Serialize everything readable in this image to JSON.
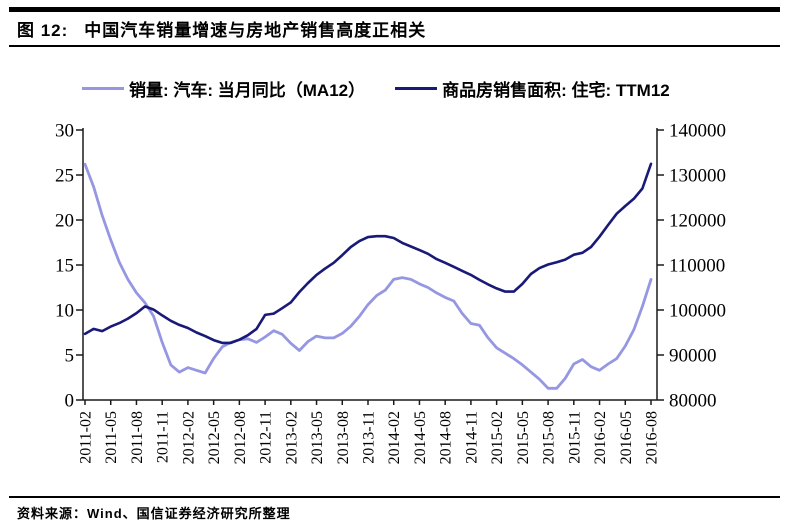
{
  "figure": {
    "label": "图 12:",
    "title": "中国汽车销量增速与房地产销售高度正相关",
    "source": "资料来源：Wind、国信证券经济研究所整理"
  },
  "colors": {
    "auto_series": "#9697e2",
    "housing_series": "#191978",
    "axis": "#1a1a1a",
    "text": "#000000"
  },
  "legend": [
    {
      "label": "销量: 汽车: 当月同比（MA12）",
      "color": "#9697e2"
    },
    {
      "label": "商品房销售面积: 住宅: TTM12",
      "color": "#191978"
    }
  ],
  "chart_data": {
    "type": "line",
    "title": "中国汽车销量增速与房地产销售高度正相关",
    "legend_position": "top",
    "grid": false,
    "x": [
      "2011-02",
      "2011-03",
      "2011-04",
      "2011-05",
      "2011-06",
      "2011-07",
      "2011-08",
      "2011-09",
      "2011-10",
      "2011-11",
      "2011-12",
      "2012-01",
      "2012-02",
      "2012-03",
      "2012-04",
      "2012-05",
      "2012-06",
      "2012-07",
      "2012-08",
      "2012-09",
      "2012-10",
      "2012-11",
      "2012-12",
      "2013-01",
      "2013-02",
      "2013-03",
      "2013-04",
      "2013-05",
      "2013-06",
      "2013-07",
      "2013-08",
      "2013-09",
      "2013-10",
      "2013-11",
      "2013-12",
      "2014-01",
      "2014-02",
      "2014-03",
      "2014-04",
      "2014-05",
      "2014-06",
      "2014-07",
      "2014-08",
      "2014-09",
      "2014-10",
      "2014-11",
      "2014-12",
      "2015-01",
      "2015-02",
      "2015-03",
      "2015-04",
      "2015-05",
      "2015-06",
      "2015-07",
      "2015-08",
      "2015-09",
      "2015-10",
      "2015-11",
      "2015-12",
      "2016-01",
      "2016-02",
      "2016-03",
      "2016-04",
      "2016-05",
      "2016-06",
      "2016-07",
      "2016-08"
    ],
    "x_tick_labels": [
      "2011-02",
      "2011-05",
      "2011-08",
      "2011-11",
      "2012-02",
      "2012-05",
      "2012-08",
      "2012-11",
      "2013-02",
      "2013-05",
      "2013-08",
      "2013-11",
      "2014-02",
      "2014-05",
      "2014-08",
      "2014-11",
      "2015-02",
      "2015-05",
      "2015-08",
      "2015-11",
      "2016-02",
      "2016-05",
      "2016-08"
    ],
    "x_tick_every": 3,
    "left_axis": {
      "min": 0,
      "max": 30,
      "step": 5,
      "ticks": [
        0,
        5,
        10,
        15,
        20,
        25,
        30
      ]
    },
    "right_axis": {
      "min": 80000,
      "max": 140000,
      "step": 10000,
      "ticks": [
        80000,
        90000,
        100000,
        110000,
        120000,
        130000,
        140000
      ]
    },
    "series": [
      {
        "name": "销量: 汽车: 当月同比（MA12）",
        "axis": "left",
        "color": "#9697e2",
        "values": [
          26.2,
          23.7,
          20.5,
          17.8,
          15.3,
          13.4,
          11.9,
          10.8,
          9.3,
          6.4,
          3.9,
          3.1,
          3.6,
          3.3,
          3.0,
          4.6,
          5.9,
          6.4,
          6.7,
          6.8,
          6.4,
          7.0,
          7.7,
          7.3,
          6.3,
          5.5,
          6.5,
          7.1,
          6.9,
          6.9,
          7.4,
          8.2,
          9.3,
          10.6,
          11.6,
          12.2,
          13.4,
          13.6,
          13.4,
          12.9,
          12.5,
          11.9,
          11.4,
          11.0,
          9.6,
          8.5,
          8.3,
          6.9,
          5.8,
          5.2,
          4.6,
          3.9,
          3.1,
          2.3,
          1.3,
          1.3,
          2.4,
          4.0,
          4.5,
          3.7,
          3.3,
          4.0,
          4.6,
          6.0,
          7.8,
          10.4,
          13.4
        ]
      },
      {
        "name": "商品房销售面积: 住宅: TTM12",
        "axis": "right",
        "color": "#191978",
        "values": [
          94700,
          95800,
          95300,
          96300,
          97100,
          98100,
          99300,
          100800,
          100100,
          98800,
          97600,
          96700,
          96000,
          95000,
          94200,
          93300,
          92700,
          92700,
          93400,
          94400,
          95800,
          98900,
          99200,
          100400,
          101700,
          104000,
          106000,
          107800,
          109200,
          110500,
          112200,
          114000,
          115300,
          116200,
          116400,
          116400,
          116000,
          114900,
          114100,
          113300,
          112500,
          111300,
          110500,
          109600,
          108700,
          107800,
          106700,
          105700,
          104800,
          104100,
          104100,
          105800,
          108000,
          109300,
          110100,
          110600,
          111200,
          112300,
          112700,
          114000,
          116300,
          118900,
          121400,
          123100,
          124700,
          127000,
          132500
        ]
      }
    ]
  }
}
